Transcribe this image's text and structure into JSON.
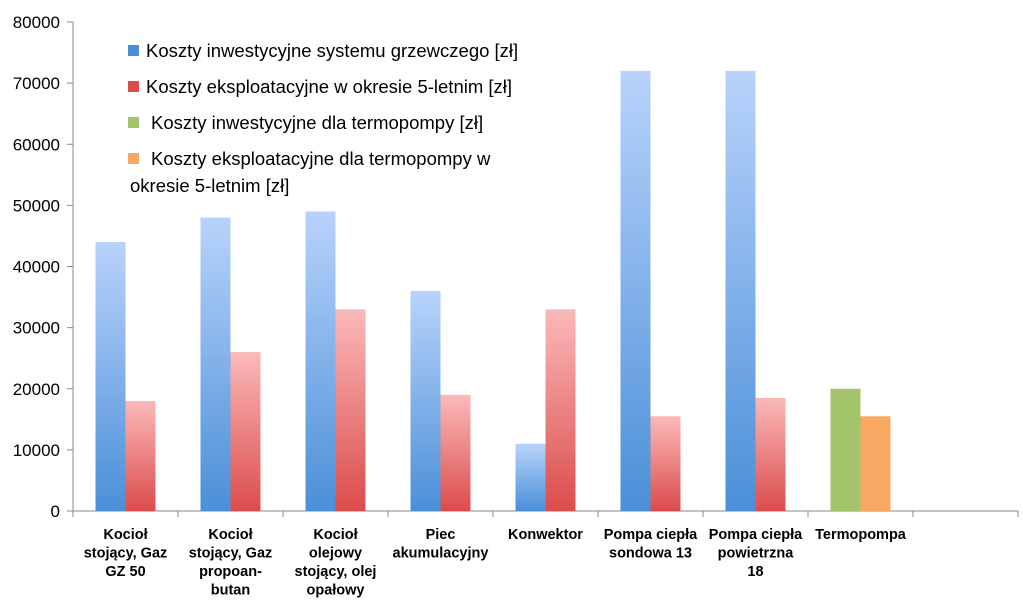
{
  "chart_data": {
    "type": "bar",
    "categories": [
      [
        "Kocioł",
        "stojący, Gaz",
        "GZ 50"
      ],
      [
        "Kocioł",
        "stojący, Gaz",
        "propoan-",
        "butan"
      ],
      [
        "Kocioł",
        "olejowy",
        "stojący, olej",
        "opałowy"
      ],
      [
        "Piec",
        "akumulacyjny"
      ],
      [
        "Konwektor"
      ],
      [
        "Pompa ciepła",
        "sondowa 13"
      ],
      [
        "Pompa ciepła",
        "powietrzna",
        "18"
      ],
      [
        "Termopompa"
      ],
      [
        ""
      ]
    ],
    "series": [
      {
        "name": "Koszty inwestycyjne systemu grzewczego [zł]",
        "color_top": "#b8d3fb",
        "color_bottom": "#4b8fd8",
        "values": [
          44000,
          48000,
          49000,
          36000,
          11000,
          72000,
          72000,
          null,
          null
        ]
      },
      {
        "name": "Koszty eksploatacyjne w okresie 5-letnim [zł]",
        "color_top": "#fbb9b9",
        "color_bottom": "#dc4c4c",
        "values": [
          18000,
          26000,
          33000,
          19000,
          33000,
          15500,
          18500,
          null,
          null
        ]
      },
      {
        "name": "Koszty inwestycyjne dla termopompy [zł]",
        "color_top": "#a3c46a",
        "color_bottom": "#a3c46a",
        "values": [
          null,
          null,
          null,
          null,
          null,
          null,
          null,
          20000,
          null
        ]
      },
      {
        "name": "Koszty eksploatacyjne dla termopompy w okresie 5-letnim [zł]",
        "color_top": "#f8a863",
        "color_bottom": "#f8a863",
        "values": [
          null,
          null,
          null,
          null,
          null,
          null,
          null,
          15500,
          null
        ]
      }
    ],
    "legend_lines": [
      [
        "Koszty inwestycyjne systemu grzewczego [zł]"
      ],
      [
        "Koszty eksploatacyjne w okresie 5-letnim [zł]"
      ],
      [
        "Koszty inwestycyjne dla termopompy [zł]"
      ],
      [
        "Koszty eksploatacyjne dla termopompy w",
        "okresie 5-letnim [zł]"
      ]
    ],
    "yticks": [
      "0",
      "10000",
      "20000",
      "30000",
      "40000",
      "50000",
      "60000",
      "70000",
      "80000"
    ],
    "ylim": [
      0,
      80000
    ],
    "legend_position": "top-left",
    "grid": false
  }
}
